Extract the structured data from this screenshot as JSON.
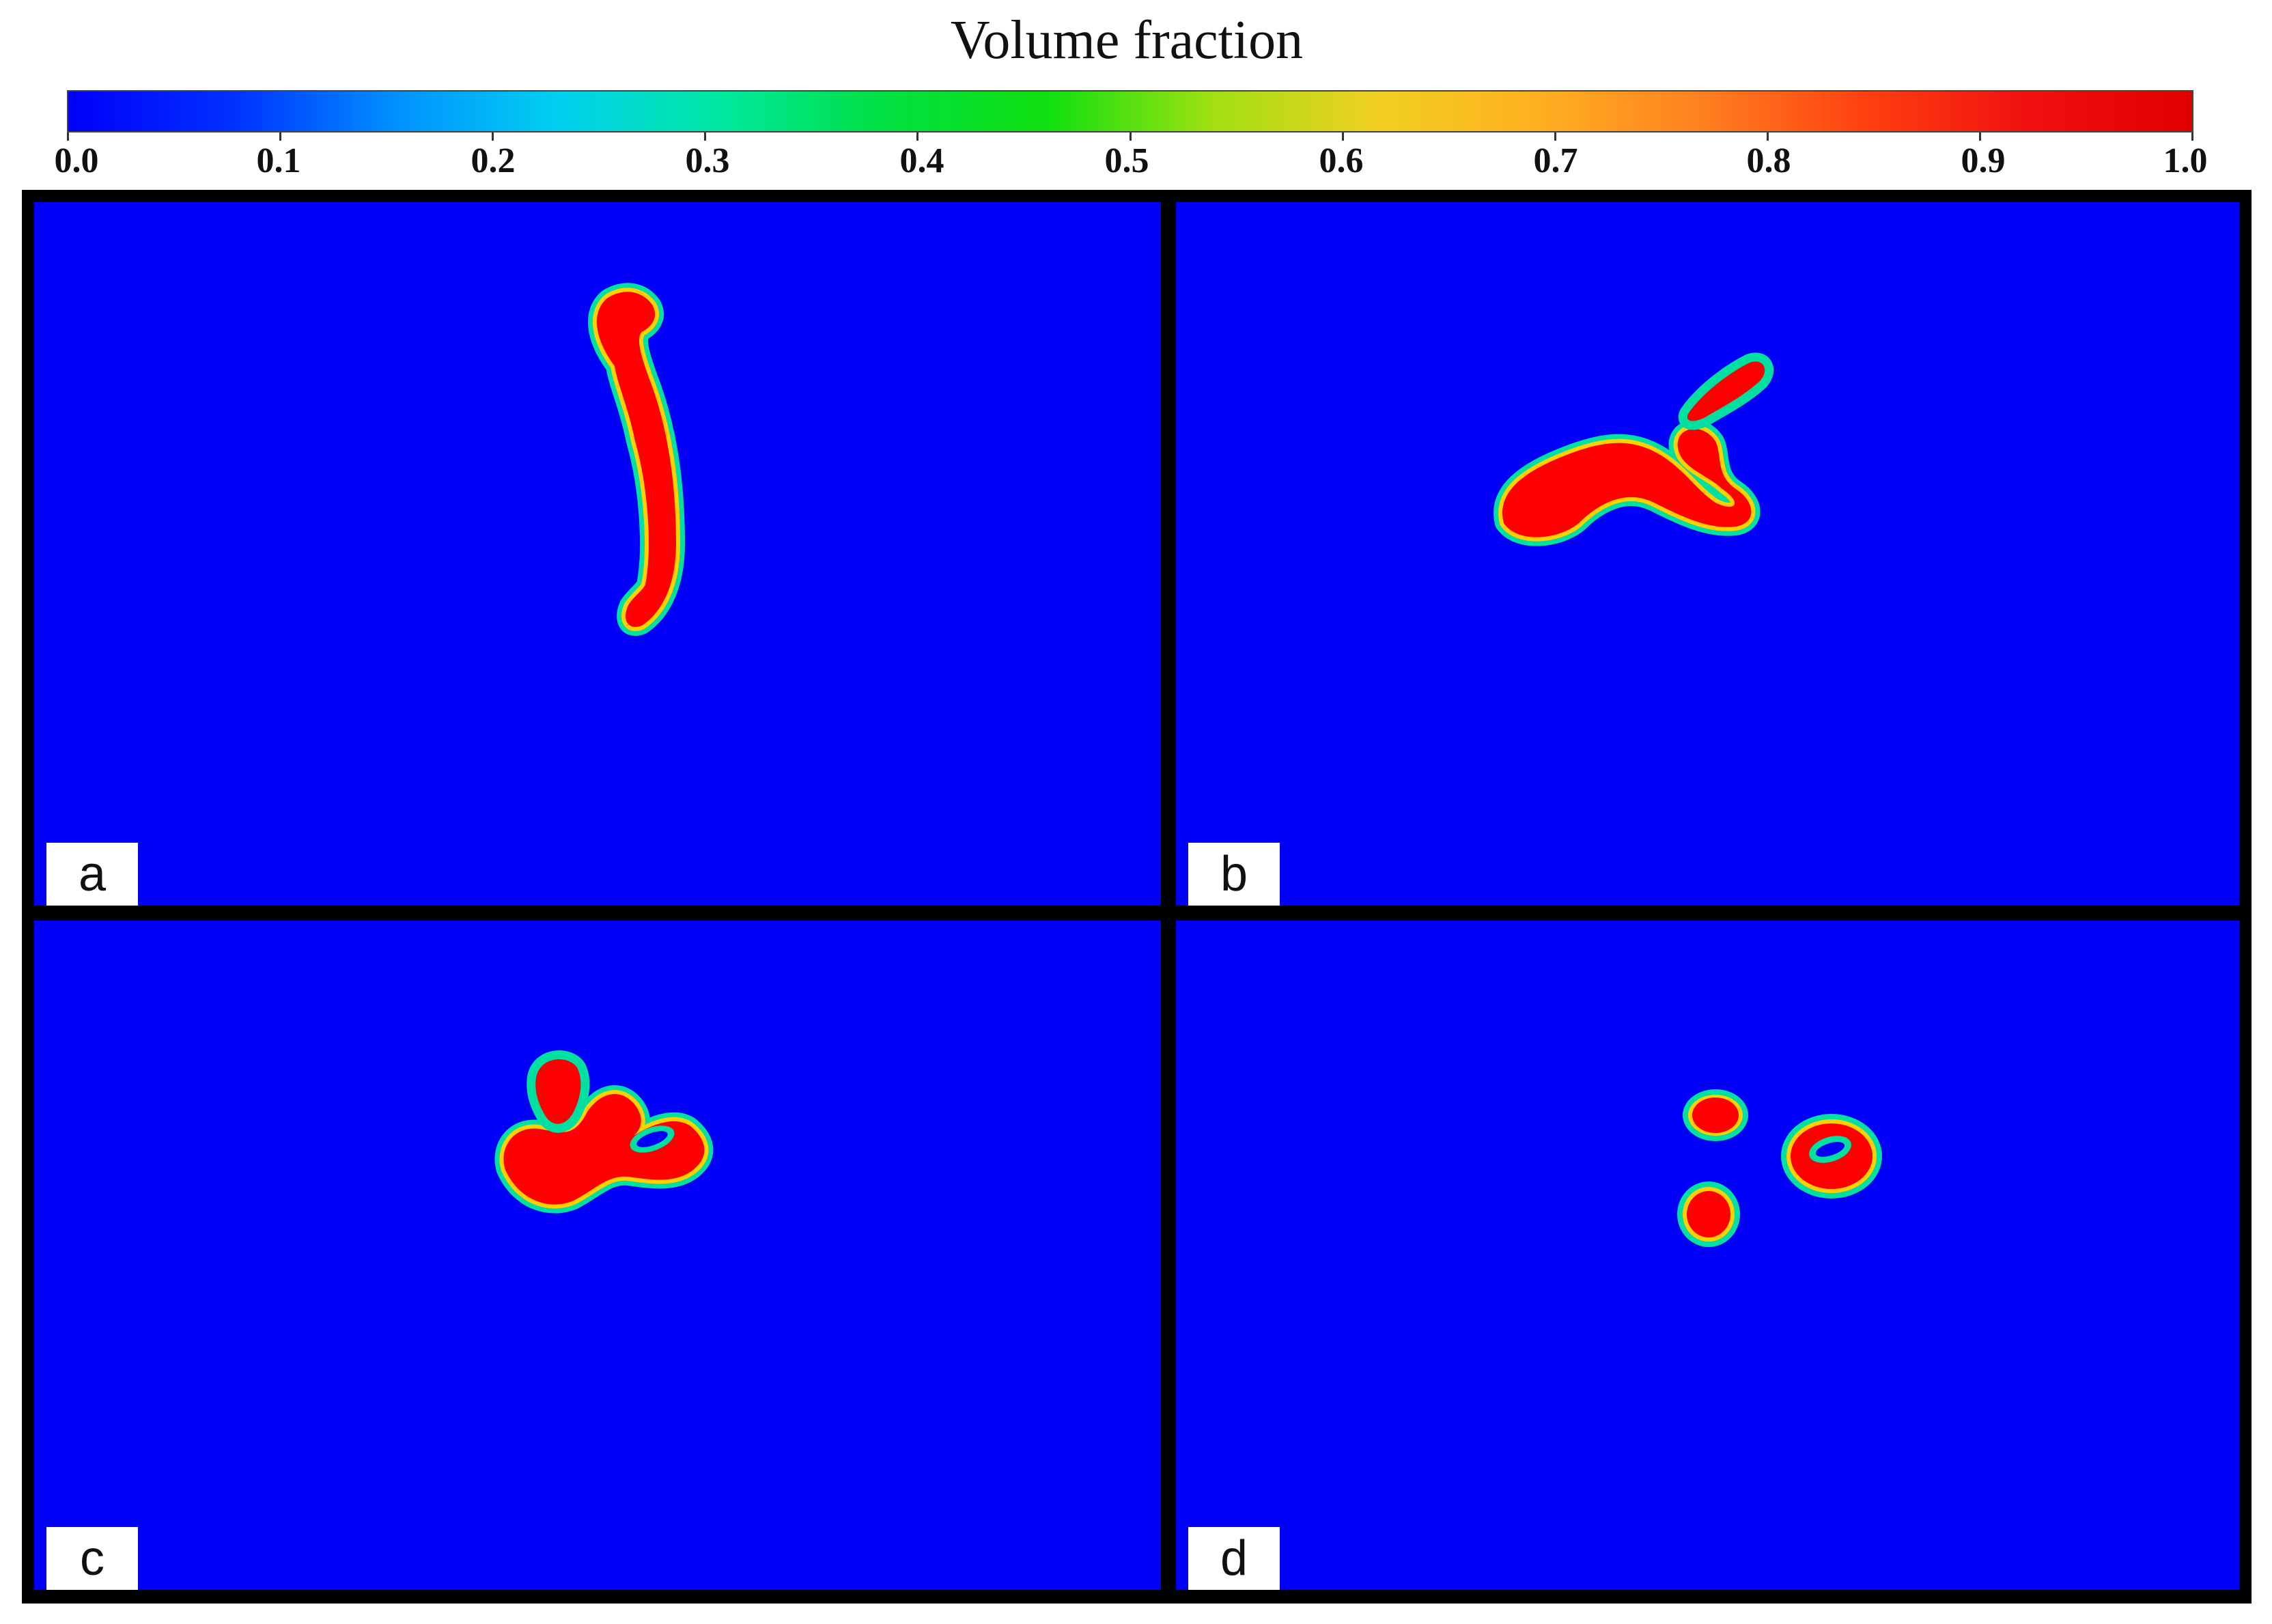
{
  "colorbar": {
    "title": "Volume fraction",
    "tick_labels": [
      "0.0",
      "0.1",
      "0.2",
      "0.3",
      "0.4",
      "0.5",
      "0.6",
      "0.7",
      "0.8",
      "0.9",
      "1.0"
    ],
    "colormap": "jet",
    "range": [
      0.0,
      1.0
    ],
    "gradient_colors": [
      "#0000f8",
      "#0030ff",
      "#0090ff",
      "#00d0f0",
      "#00e8a0",
      "#00e040",
      "#10e010",
      "#a0e010",
      "#f0d020",
      "#ffb020",
      "#ff8020",
      "#ff4010",
      "#f01010",
      "#e00000"
    ]
  },
  "panels": [
    {
      "label": "a",
      "background": "#0000f8"
    },
    {
      "label": "b",
      "background": "#0000f8"
    },
    {
      "label": "c",
      "background": "#0000f8"
    },
    {
      "label": "d",
      "background": "#0000f8"
    }
  ],
  "colors": {
    "droplet_core": "#ff0000",
    "droplet_edge": "#00e0a0",
    "droplet_mid": "#ffd000",
    "frame": "#000000"
  }
}
